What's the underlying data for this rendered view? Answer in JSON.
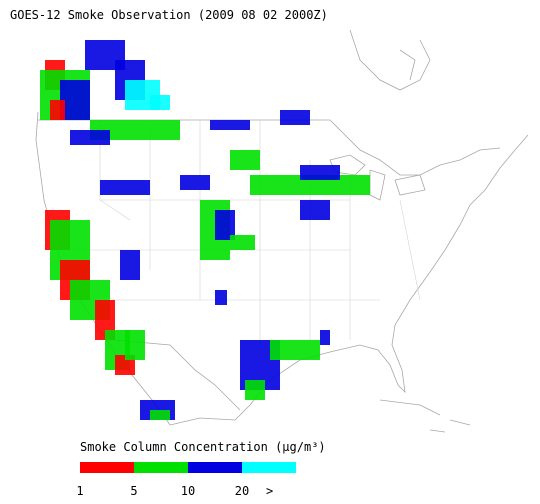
{
  "title": "GOES-12 Smoke Observation (2009 08 02  2000Z)",
  "legend": {
    "title": "Smoke Column Concentration (μg/m³)",
    "bins": [
      {
        "color": "#ff0000"
      },
      {
        "color": "#00e000"
      },
      {
        "color": "#0000e0"
      },
      {
        "color": "#00ffff"
      }
    ],
    "labels": [
      "1",
      "5",
      "10",
      "20",
      ">"
    ]
  }
}
